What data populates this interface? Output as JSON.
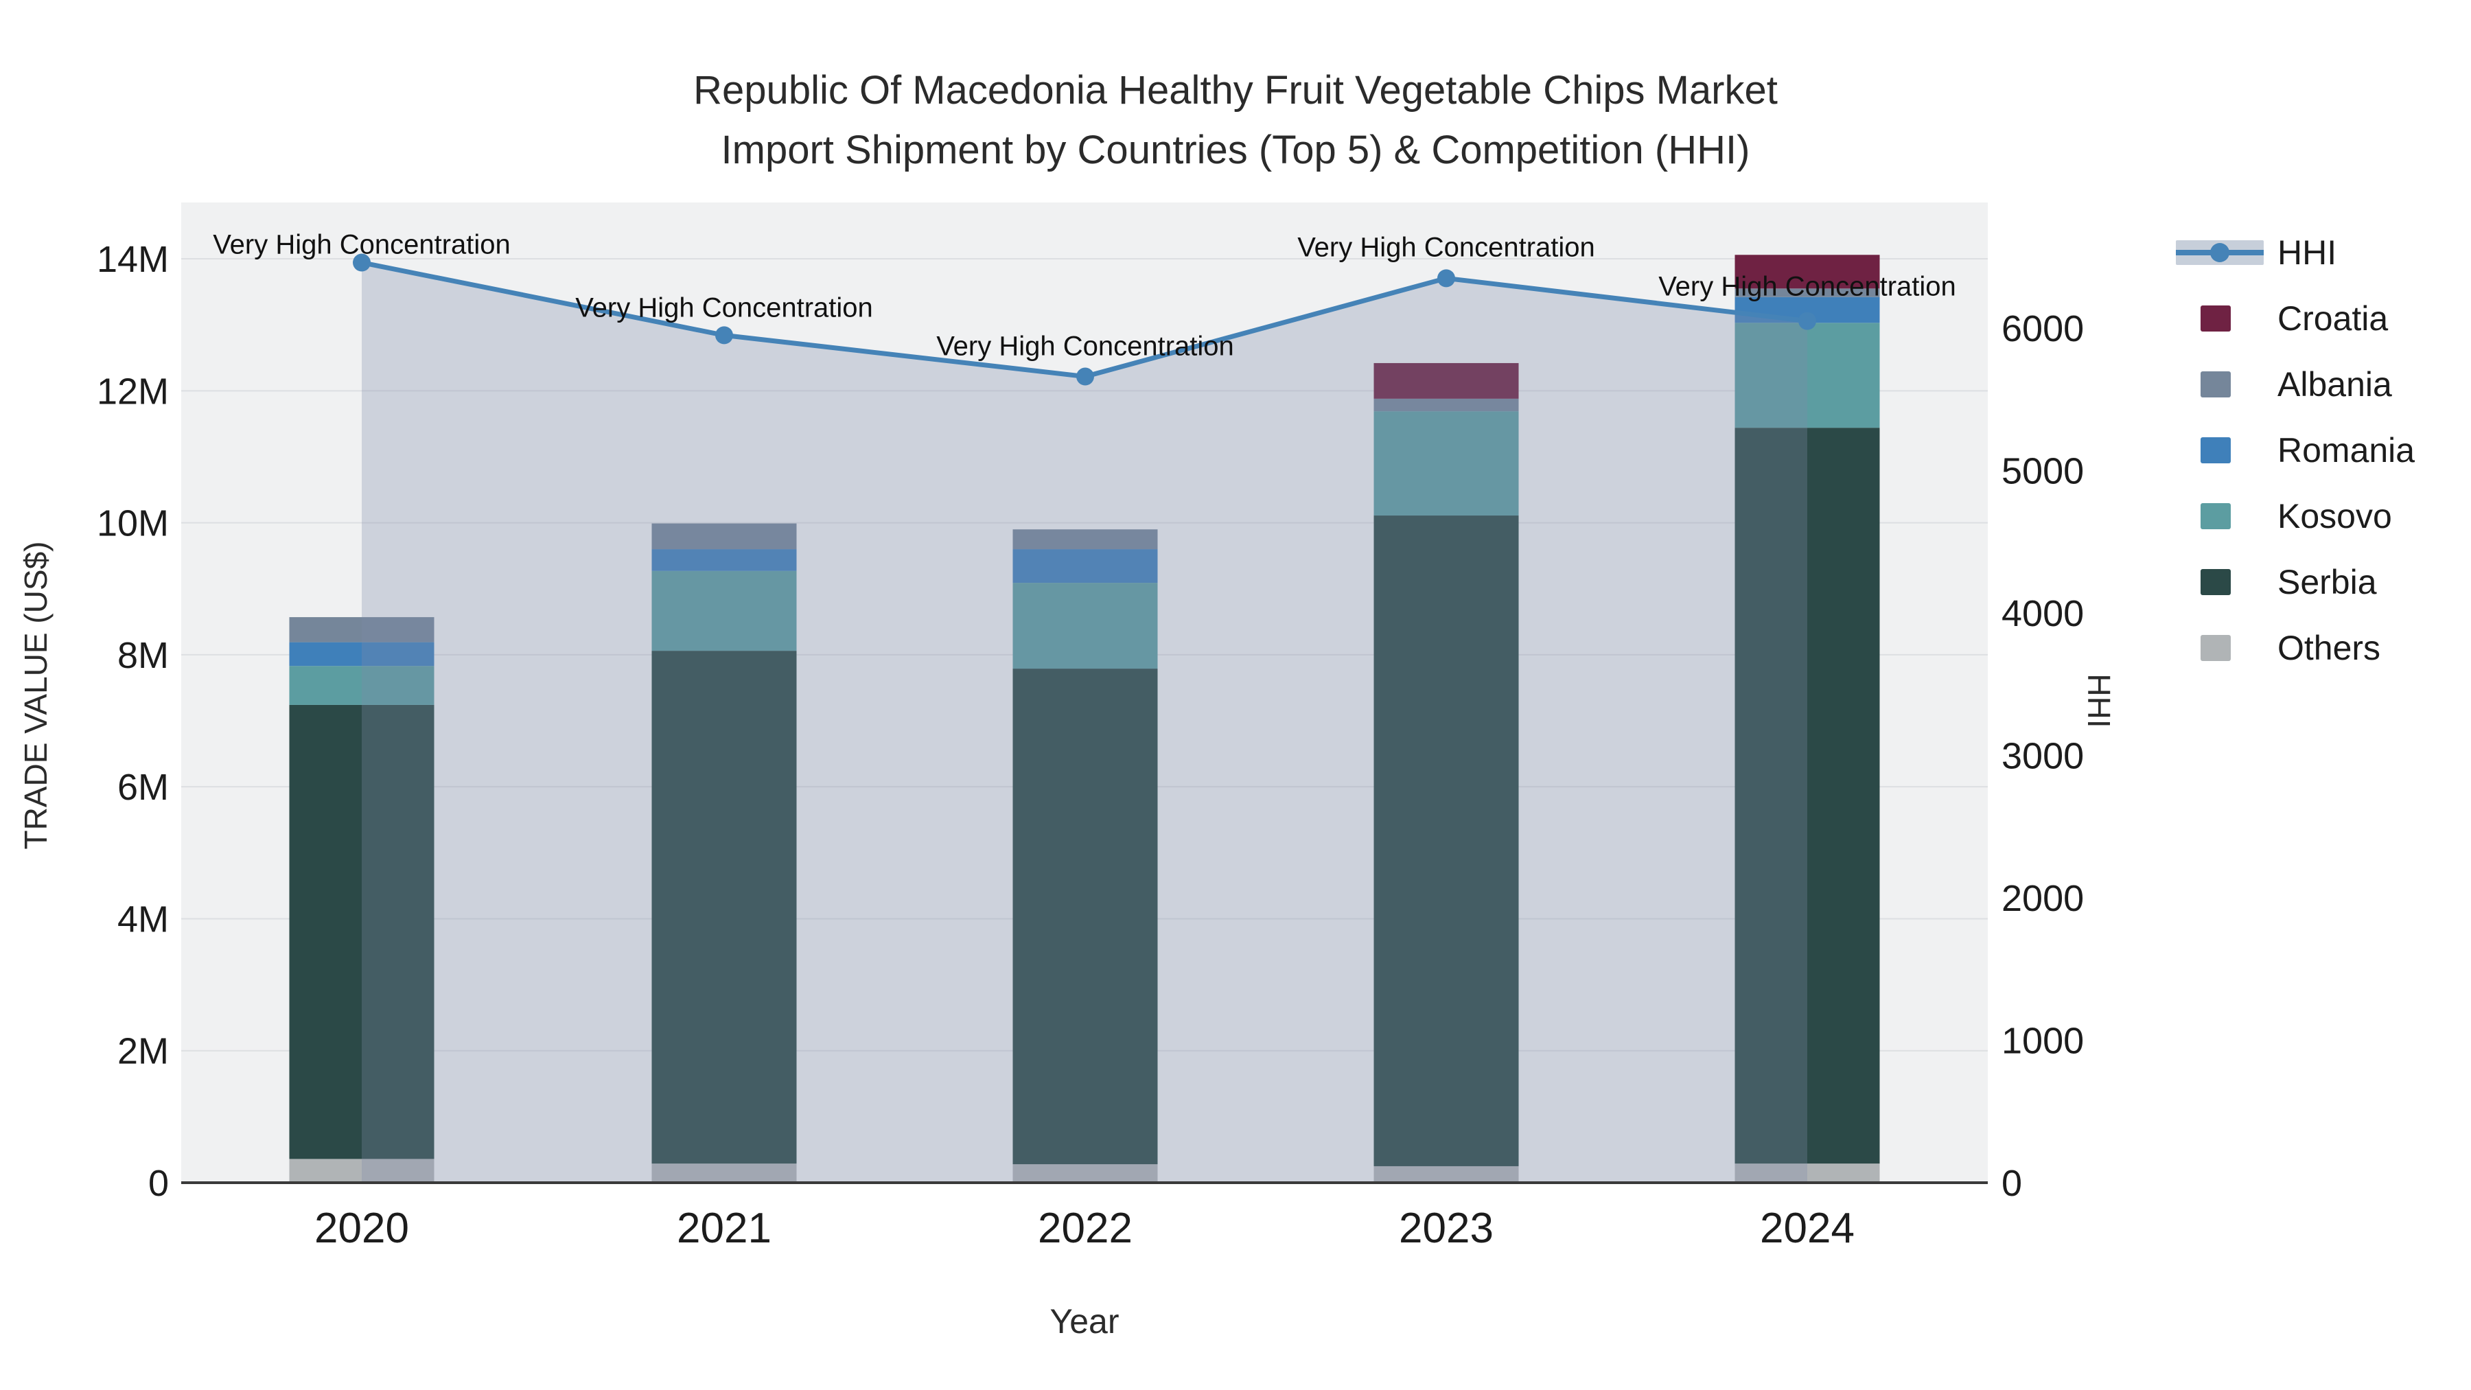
{
  "title": {
    "line1": "Republic Of Macedonia Healthy Fruit Vegetable Chips Market",
    "line2": "Import Shipment by Countries (Top 5) & Competition (HHI)"
  },
  "axes": {
    "x_title": "Year",
    "y_title": "TRADE VALUE (US$)",
    "y2_title": "HHI",
    "y_tick_labels": [
      "0",
      "2M",
      "4M",
      "6M",
      "8M",
      "10M",
      "12M",
      "14M"
    ],
    "y_tick_values_musd": [
      0,
      2,
      4,
      6,
      8,
      10,
      12,
      14
    ],
    "y2_tick_labels": [
      "0",
      "1000",
      "2000",
      "3000",
      "4000",
      "5000",
      "6000"
    ],
    "y2_tick_values": [
      0,
      1000,
      2000,
      3000,
      4000,
      5000,
      6000
    ]
  },
  "legend": {
    "items": [
      {
        "label": "HHI",
        "type": "line",
        "color": "#4583b7"
      },
      {
        "label": "Croatia",
        "type": "swatch",
        "color": "#6f2243"
      },
      {
        "label": "Albania",
        "type": "swatch",
        "color": "#75869a"
      },
      {
        "label": "Romania",
        "type": "swatch",
        "color": "#3f80ba"
      },
      {
        "label": "Kosovo",
        "type": "swatch",
        "color": "#5c9da1"
      },
      {
        "label": "Serbia",
        "type": "swatch",
        "color": "#2b4947"
      },
      {
        "label": "Others",
        "type": "swatch",
        "color": "#b0b4b6"
      }
    ]
  },
  "chart_data": {
    "type": "bar",
    "subtype": "stacked-bars-with-line",
    "title": "Republic Of Macedonia Healthy Fruit Vegetable Chips Market Import Shipment by Countries (Top 5) & Competition (HHI)",
    "xlabel": "Year",
    "ylabel": "TRADE VALUE (US$)",
    "y2label": "HHI",
    "categories": [
      "2020",
      "2021",
      "2022",
      "2023",
      "2024"
    ],
    "ylim_musd": [
      0,
      14.85
    ],
    "y2lim": [
      0,
      6880
    ],
    "grid": true,
    "legend_position": "right",
    "series": [
      {
        "name": "Others",
        "color": "#b0b4b6",
        "values_musd": [
          0.36,
          0.29,
          0.28,
          0.25,
          0.29
        ]
      },
      {
        "name": "Serbia",
        "color": "#2b4947",
        "values_musd": [
          6.88,
          7.77,
          7.51,
          9.86,
          11.15
        ]
      },
      {
        "name": "Kosovo",
        "color": "#5c9da1",
        "values_musd": [
          0.59,
          1.21,
          1.3,
          1.58,
          1.59
        ]
      },
      {
        "name": "Romania",
        "color": "#3f80ba",
        "values_musd": [
          0.36,
          0.33,
          0.51,
          0.0,
          0.39
        ]
      },
      {
        "name": "Albania",
        "color": "#75869a",
        "values_musd": [
          0.38,
          0.39,
          0.3,
          0.19,
          0.13
        ]
      },
      {
        "name": "Croatia",
        "color": "#6f2243",
        "values_musd": [
          0.0,
          0.0,
          0.0,
          0.54,
          0.51
        ]
      }
    ],
    "bar_totals_musd": [
      8.57,
      9.99,
      9.9,
      12.42,
      14.06
    ],
    "line_series": {
      "name": "HHI",
      "color": "#4583b7",
      "area_fill": "rgba(125,140,170,0.30)",
      "values": [
        6460,
        5950,
        5660,
        6350,
        6050
      ]
    },
    "annotations": [
      {
        "text": "Very High Concentration",
        "x": "2020",
        "hhi": 6460
      },
      {
        "text": "Very High Concentration",
        "x": "2021",
        "hhi": 5950
      },
      {
        "text": "Very High Concentration",
        "x": "2022",
        "hhi": 5660
      },
      {
        "text": "Very High Concentration",
        "x": "2023",
        "hhi": 6350
      },
      {
        "text": "Very High Concentration",
        "x": "2024",
        "hhi": 6050
      }
    ]
  },
  "colors": {
    "plot_bg": "#f0f1f2",
    "gridline": "#dddfe2",
    "axis_line": "#3a3a3a",
    "tick_text": "#1c1c1c",
    "annotation_text": "#111111",
    "hhi_line": "#4583b7"
  }
}
